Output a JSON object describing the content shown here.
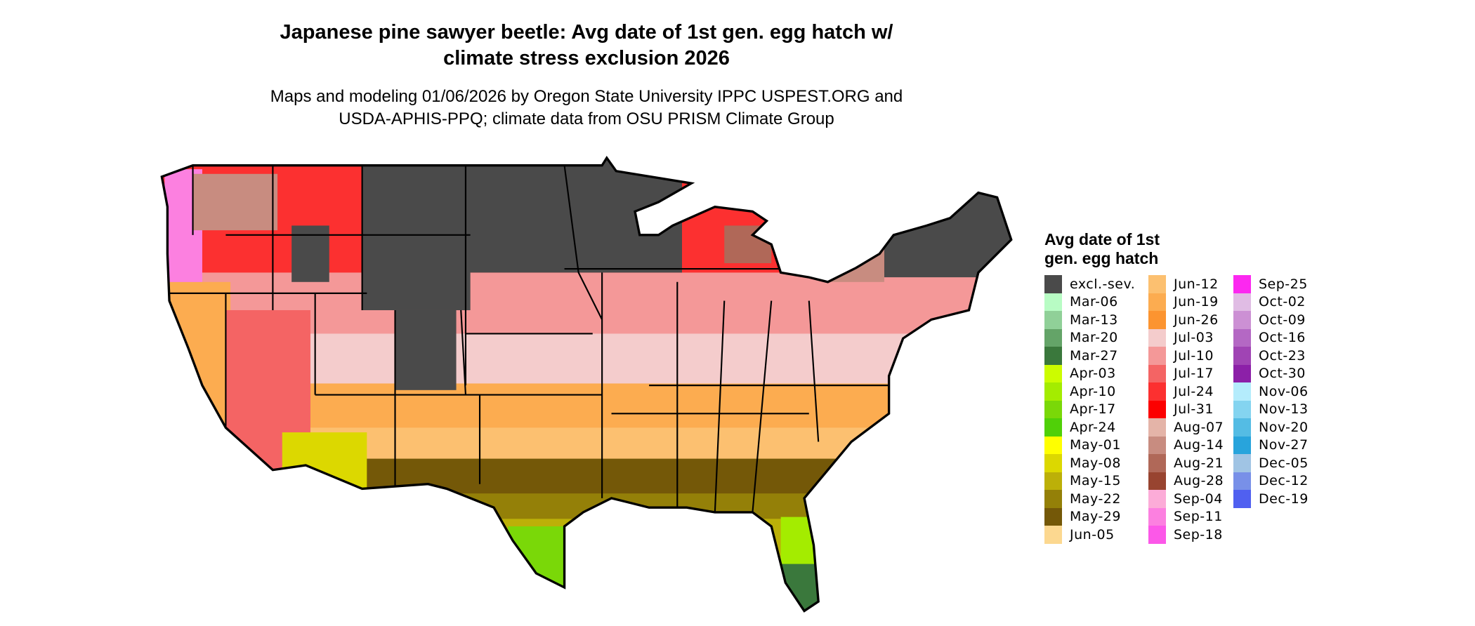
{
  "title": "Japanese pine sawyer beetle: Avg date of 1st gen. egg hatch w/ climate stress exclusion 2026",
  "title_lines": [
    "Japanese pine sawyer beetle: Avg date of 1st gen. egg hatch w/",
    "climate stress exclusion 2026"
  ],
  "subtitle_lines": [
    "Maps and modeling 01/06/2026 by Oregon State University IPPC USPEST.ORG and",
    "USDA-APHIS-PPQ; climate data from OSU PRISM Climate Group"
  ],
  "legend": {
    "title_lines": [
      "Avg date of 1st",
      "gen. egg hatch"
    ],
    "columns": [
      [
        {
          "label": "excl.-sev.",
          "color": "#4a4a4a"
        },
        {
          "label": "Mar-06",
          "color": "#b8fcc4"
        },
        {
          "label": "Mar-13",
          "color": "#90d098"
        },
        {
          "label": "Mar-20",
          "color": "#64a468"
        },
        {
          "label": "Mar-27",
          "color": "#3a783c"
        },
        {
          "label": "Apr-03",
          "color": "#ccfc00"
        },
        {
          "label": "Apr-10",
          "color": "#a4ec00"
        },
        {
          "label": "Apr-17",
          "color": "#7ad808"
        },
        {
          "label": "Apr-24",
          "color": "#50d008"
        },
        {
          "label": "May-01",
          "color": "#ffff00"
        },
        {
          "label": "May-08",
          "color": "#dcd800"
        },
        {
          "label": "May-15",
          "color": "#bcb008"
        },
        {
          "label": "May-22",
          "color": "#948008"
        },
        {
          "label": "May-29",
          "color": "#745808"
        },
        {
          "label": "Jun-05",
          "color": "#fcd890"
        }
      ],
      [
        {
          "label": "Jun-12",
          "color": "#fcc070"
        },
        {
          "label": "Jun-19",
          "color": "#fcac50"
        },
        {
          "label": "Jun-26",
          "color": "#fc9430"
        },
        {
          "label": "Jul-03",
          "color": "#f4cccc"
        },
        {
          "label": "Jul-10",
          "color": "#f49898"
        },
        {
          "label": "Jul-17",
          "color": "#f46464"
        },
        {
          "label": "Jul-24",
          "color": "#fc3030"
        },
        {
          "label": "Jul-31",
          "color": "#fc0000"
        },
        {
          "label": "Aug-07",
          "color": "#e4b4a8"
        },
        {
          "label": "Aug-14",
          "color": "#c88c80"
        },
        {
          "label": "Aug-21",
          "color": "#b06858"
        },
        {
          "label": "Aug-28",
          "color": "#984430"
        },
        {
          "label": "Sep-04",
          "color": "#fcacd8"
        },
        {
          "label": "Sep-11",
          "color": "#fc80e0"
        },
        {
          "label": "Sep-18",
          "color": "#fc58e8"
        }
      ],
      [
        {
          "label": "Sep-25",
          "color": "#fc28f0"
        },
        {
          "label": "Oct-02",
          "color": "#e0bce4"
        },
        {
          "label": "Oct-09",
          "color": "#cc90d4"
        },
        {
          "label": "Oct-16",
          "color": "#b468c4"
        },
        {
          "label": "Oct-23",
          "color": "#a044b4"
        },
        {
          "label": "Oct-30",
          "color": "#8c20a8"
        },
        {
          "label": "Nov-06",
          "color": "#b4ecfc"
        },
        {
          "label": "Nov-13",
          "color": "#84d4f0"
        },
        {
          "label": "Nov-20",
          "color": "#54bce4"
        },
        {
          "label": "Nov-27",
          "color": "#28a4dc"
        },
        {
          "label": "Dec-05",
          "color": "#a0c4e4"
        },
        {
          "label": "Dec-12",
          "color": "#7890e8"
        },
        {
          "label": "Dec-19",
          "color": "#5060f0"
        }
      ]
    ]
  }
}
